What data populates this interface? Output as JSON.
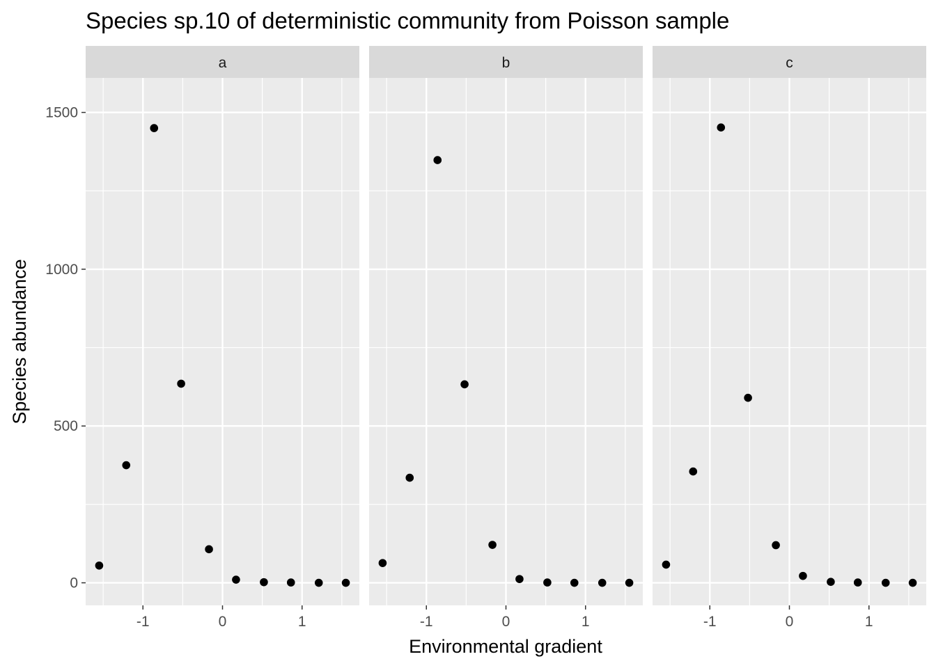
{
  "chart_data": {
    "type": "scatter",
    "title": "Species sp.10 of deterministic community from Poisson sample",
    "xlabel": "Environmental gradient",
    "ylabel": "Species abundance",
    "xlim": [
      -1.72,
      1.72
    ],
    "ylim": [
      -72,
      1610
    ],
    "x_ticks": [
      -1,
      0,
      1
    ],
    "x_tick_labels": [
      "-1",
      "0",
      "1"
    ],
    "y_ticks": [
      0,
      500,
      1000,
      1500
    ],
    "y_tick_labels": [
      "0",
      "500",
      "1000",
      "1500"
    ],
    "grid": true,
    "point_color": "#000000",
    "panel_background": "#ebebeb",
    "strip_background": "#d9d9d9",
    "panels": [
      {
        "label": "a",
        "x": [
          -1.55,
          -1.21,
          -0.86,
          -0.52,
          -0.17,
          0.17,
          0.52,
          0.86,
          1.21,
          1.55
        ],
        "y": [
          55,
          375,
          1450,
          635,
          107,
          10,
          2,
          1,
          0,
          0
        ]
      },
      {
        "label": "b",
        "x": [
          -1.55,
          -1.21,
          -0.86,
          -0.52,
          -0.17,
          0.17,
          0.52,
          0.86,
          1.21,
          1.55
        ],
        "y": [
          63,
          335,
          1348,
          633,
          121,
          12,
          1,
          0,
          0,
          0
        ]
      },
      {
        "label": "c",
        "x": [
          -1.55,
          -1.21,
          -0.86,
          -0.52,
          -0.17,
          0.17,
          0.52,
          0.86,
          1.21,
          1.55
        ],
        "y": [
          58,
          355,
          1452,
          590,
          120,
          22,
          3,
          1,
          0,
          0
        ]
      }
    ]
  }
}
